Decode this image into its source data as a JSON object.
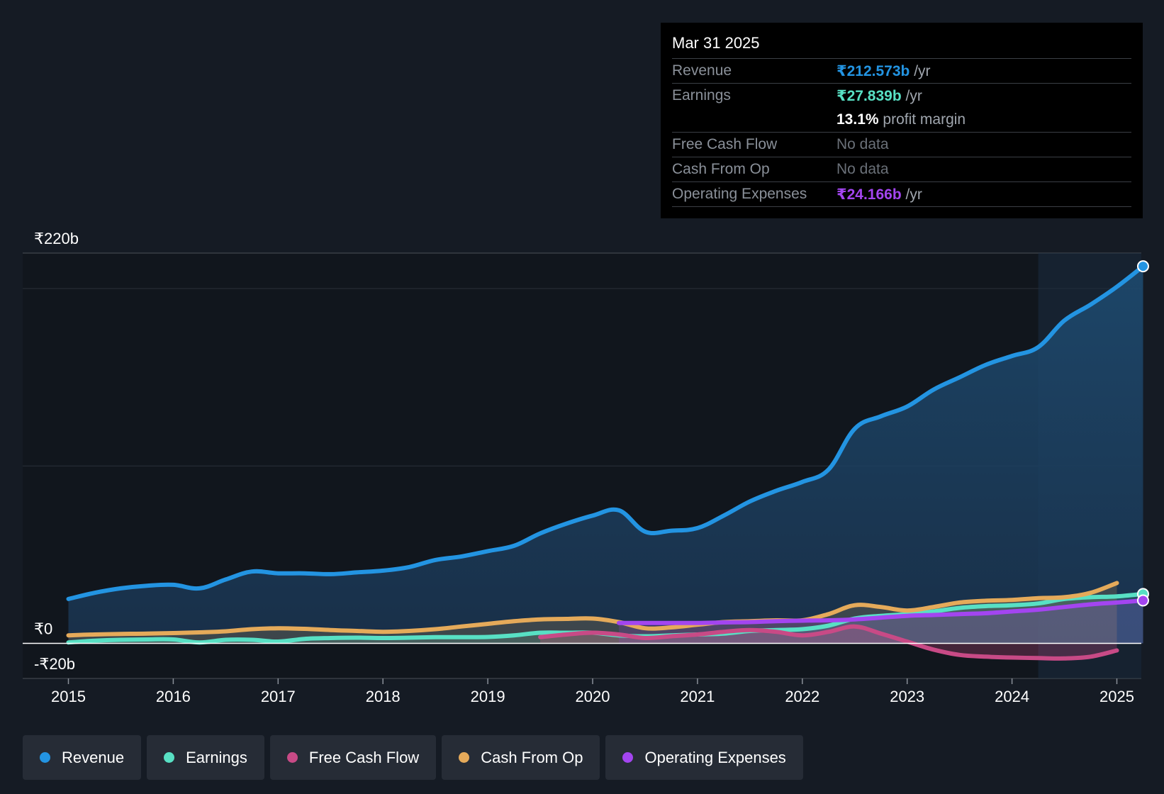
{
  "colors": {
    "revenue": "#2394e2",
    "earnings": "#58e0c4",
    "free_cash_flow": "#c84a86",
    "cash_from_op": "#e5aa5a",
    "operating_expenses": "#a345f0",
    "background": "#151b24"
  },
  "tooltip": {
    "date": "Mar 31 2025",
    "rows": {
      "revenue": {
        "label": "Revenue",
        "value": "₹212.573b",
        "unit": "/yr"
      },
      "earnings": {
        "label": "Earnings",
        "value": "₹27.839b",
        "unit": "/yr"
      },
      "margin": {
        "value": "13.1%",
        "text": "profit margin"
      },
      "fcf": {
        "label": "Free Cash Flow",
        "value": "No data"
      },
      "cfo": {
        "label": "Cash From Op",
        "value": "No data"
      },
      "opex": {
        "label": "Operating Expenses",
        "value": "₹24.166b",
        "unit": "/yr"
      }
    }
  },
  "legend": [
    {
      "label": "Revenue",
      "color": "#2394e2"
    },
    {
      "label": "Earnings",
      "color": "#58e0c4"
    },
    {
      "label": "Free Cash Flow",
      "color": "#c84a86"
    },
    {
      "label": "Cash From Op",
      "color": "#e5aa5a"
    },
    {
      "label": "Operating Expenses",
      "color": "#a345f0"
    }
  ],
  "chart_data": {
    "type": "line",
    "currency": "₹",
    "unit": "b",
    "ylim": [
      -20,
      220
    ],
    "y_tick_labels": [
      "₹220b",
      "₹0",
      "-₹20b"
    ],
    "x_ticks": [
      2015,
      2016,
      2017,
      2018,
      2019,
      2020,
      2021,
      2022,
      2023,
      2024,
      2025
    ],
    "x_tick_labels": [
      "2015",
      "2016",
      "2017",
      "2018",
      "2019",
      "2020",
      "2021",
      "2022",
      "2023",
      "2024",
      "2025"
    ],
    "highlight_from": 2024.25,
    "series": [
      {
        "name": "Revenue",
        "key": "revenue",
        "fill": true,
        "end_marker": true,
        "points": [
          [
            2015,
            25
          ],
          [
            2015.25,
            28.5
          ],
          [
            2015.5,
            31
          ],
          [
            2015.75,
            32.5
          ],
          [
            2016,
            33
          ],
          [
            2016.25,
            31
          ],
          [
            2016.5,
            36
          ],
          [
            2016.75,
            40.5
          ],
          [
            2017,
            39.5
          ],
          [
            2017.25,
            39.5
          ],
          [
            2017.5,
            39
          ],
          [
            2017.75,
            40
          ],
          [
            2018,
            41
          ],
          [
            2018.25,
            43
          ],
          [
            2018.5,
            47
          ],
          [
            2018.75,
            49
          ],
          [
            2019,
            52
          ],
          [
            2019.25,
            55
          ],
          [
            2019.5,
            62
          ],
          [
            2019.75,
            67.5
          ],
          [
            2020,
            72
          ],
          [
            2020.25,
            75
          ],
          [
            2020.5,
            63
          ],
          [
            2020.75,
            63.5
          ],
          [
            2021,
            65
          ],
          [
            2021.25,
            72
          ],
          [
            2021.5,
            80
          ],
          [
            2021.75,
            86
          ],
          [
            2022,
            91
          ],
          [
            2022.25,
            98
          ],
          [
            2022.5,
            121
          ],
          [
            2022.75,
            128
          ],
          [
            2023,
            133.5
          ],
          [
            2023.25,
            143
          ],
          [
            2023.5,
            150
          ],
          [
            2023.75,
            157
          ],
          [
            2024,
            162
          ],
          [
            2024.25,
            167
          ],
          [
            2024.5,
            182
          ],
          [
            2024.75,
            191
          ],
          [
            2025,
            201
          ],
          [
            2025.25,
            212.573
          ]
        ]
      },
      {
        "name": "Earnings",
        "key": "earnings",
        "fill": true,
        "end_marker": true,
        "points": [
          [
            2015,
            0.5
          ],
          [
            2015.25,
            1.5
          ],
          [
            2015.5,
            2
          ],
          [
            2015.75,
            2.2
          ],
          [
            2016,
            2.2
          ],
          [
            2016.25,
            0.5
          ],
          [
            2016.5,
            2
          ],
          [
            2016.75,
            2
          ],
          [
            2017,
            1
          ],
          [
            2017.25,
            2.5
          ],
          [
            2017.5,
            3
          ],
          [
            2017.75,
            3.2
          ],
          [
            2018,
            3
          ],
          [
            2018.25,
            3.2
          ],
          [
            2018.5,
            3.5
          ],
          [
            2018.75,
            3.5
          ],
          [
            2019,
            3.6
          ],
          [
            2019.25,
            4.5
          ],
          [
            2019.5,
            6
          ],
          [
            2019.75,
            6
          ],
          [
            2020,
            6
          ],
          [
            2020.25,
            4.5
          ],
          [
            2020.5,
            4
          ],
          [
            2020.75,
            4.5
          ],
          [
            2021,
            5
          ],
          [
            2021.25,
            5.5
          ],
          [
            2021.5,
            7
          ],
          [
            2021.75,
            7.5
          ],
          [
            2022,
            8
          ],
          [
            2022.25,
            10
          ],
          [
            2022.5,
            14
          ],
          [
            2022.75,
            15.5
          ],
          [
            2023,
            16.5
          ],
          [
            2023.25,
            18
          ],
          [
            2023.5,
            20
          ],
          [
            2023.75,
            21
          ],
          [
            2024,
            21.5
          ],
          [
            2024.25,
            22.5
          ],
          [
            2024.5,
            25
          ],
          [
            2024.75,
            26
          ],
          [
            2025,
            26.5
          ],
          [
            2025.25,
            27.839
          ]
        ]
      },
      {
        "name": "Free Cash Flow",
        "key": "free_cash_flow",
        "fill": true,
        "end_marker": false,
        "points": [
          [
            2019.5,
            3.5
          ],
          [
            2019.75,
            5
          ],
          [
            2020,
            6
          ],
          [
            2020.25,
            5
          ],
          [
            2020.5,
            3
          ],
          [
            2020.75,
            4
          ],
          [
            2021,
            5
          ],
          [
            2021.25,
            6.5
          ],
          [
            2021.5,
            7.5
          ],
          [
            2021.75,
            6.5
          ],
          [
            2022,
            4.5
          ],
          [
            2022.25,
            6.5
          ],
          [
            2022.5,
            9.5
          ],
          [
            2022.75,
            5.5
          ],
          [
            2023,
            1
          ],
          [
            2023.25,
            -3.5
          ],
          [
            2023.5,
            -6.5
          ],
          [
            2023.75,
            -7.5
          ],
          [
            2024,
            -8
          ],
          [
            2024.25,
            -8.3
          ],
          [
            2024.5,
            -8.5
          ],
          [
            2024.75,
            -7.5
          ],
          [
            2025,
            -4
          ]
        ]
      },
      {
        "name": "Cash From Op",
        "key": "cash_from_op",
        "fill": true,
        "end_marker": false,
        "points": [
          [
            2015,
            4.5
          ],
          [
            2015.25,
            5
          ],
          [
            2015.5,
            5.3
          ],
          [
            2015.75,
            5.5
          ],
          [
            2016,
            5.8
          ],
          [
            2016.25,
            6.2
          ],
          [
            2016.5,
            6.8
          ],
          [
            2016.75,
            8
          ],
          [
            2017,
            8.5
          ],
          [
            2017.25,
            8.2
          ],
          [
            2017.5,
            7.5
          ],
          [
            2017.75,
            7
          ],
          [
            2018,
            6.5
          ],
          [
            2018.25,
            7
          ],
          [
            2018.5,
            8
          ],
          [
            2018.75,
            9.5
          ],
          [
            2019,
            11
          ],
          [
            2019.25,
            12.5
          ],
          [
            2019.5,
            13.5
          ],
          [
            2019.75,
            13.8
          ],
          [
            2020,
            14
          ],
          [
            2020.25,
            12
          ],
          [
            2020.5,
            8.5
          ],
          [
            2020.75,
            9
          ],
          [
            2021,
            10.5
          ],
          [
            2021.25,
            12
          ],
          [
            2021.5,
            12.5
          ],
          [
            2021.75,
            13
          ],
          [
            2022,
            13
          ],
          [
            2022.25,
            16.5
          ],
          [
            2022.5,
            21.5
          ],
          [
            2022.75,
            20.5
          ],
          [
            2023,
            18.5
          ],
          [
            2023.25,
            20.5
          ],
          [
            2023.5,
            23
          ],
          [
            2023.75,
            24
          ],
          [
            2024,
            24.5
          ],
          [
            2024.25,
            25.5
          ],
          [
            2024.5,
            26
          ],
          [
            2024.75,
            28.5
          ],
          [
            2025,
            34
          ]
        ]
      },
      {
        "name": "Operating Expenses",
        "key": "operating_expenses",
        "fill": true,
        "end_marker": true,
        "points": [
          [
            2020.25,
            11.5
          ],
          [
            2020.5,
            11.5
          ],
          [
            2020.75,
            11.5
          ],
          [
            2021,
            11.5
          ],
          [
            2021.25,
            11.8
          ],
          [
            2021.5,
            12
          ],
          [
            2021.75,
            12.5
          ],
          [
            2022,
            12.8
          ],
          [
            2022.25,
            13
          ],
          [
            2022.5,
            13.5
          ],
          [
            2022.75,
            14.5
          ],
          [
            2023,
            15.5
          ],
          [
            2023.25,
            16
          ],
          [
            2023.5,
            16.5
          ],
          [
            2023.75,
            17
          ],
          [
            2024,
            18
          ],
          [
            2024.25,
            19
          ],
          [
            2024.5,
            20.5
          ],
          [
            2024.75,
            22
          ],
          [
            2025,
            23
          ],
          [
            2025.25,
            24.166
          ]
        ]
      }
    ]
  }
}
